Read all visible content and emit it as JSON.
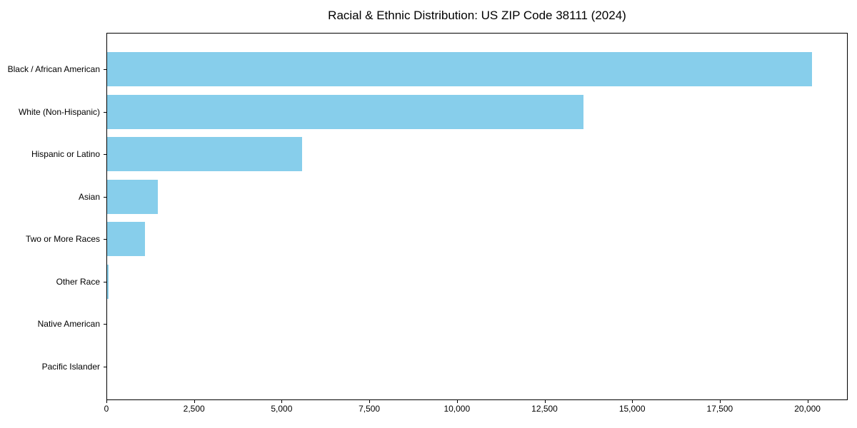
{
  "chart_data": {
    "type": "bar",
    "orientation": "horizontal",
    "title": "Racial & Ethnic Distribution: US ZIP Code 38111 (2024)",
    "categories": [
      "Black / African American",
      "White (Non-Hispanic)",
      "Hispanic or Latino",
      "Asian",
      "Two or More Races",
      "Other Race",
      "Native American",
      "Pacific Islander"
    ],
    "values": [
      20140,
      13620,
      5590,
      1470,
      1100,
      50,
      15,
      10
    ],
    "xlabel": "",
    "ylabel": "",
    "xlim": [
      0,
      21150
    ],
    "x_ticks": [
      0,
      2500,
      5000,
      7500,
      10000,
      12500,
      15000,
      17500,
      20000
    ],
    "x_tick_labels": [
      "0",
      "2,500",
      "5,000",
      "7,500",
      "10,000",
      "12,500",
      "15,000",
      "17,500",
      "20,000"
    ],
    "bar_color": "#87CEEB",
    "axis_color": "#000000",
    "grid": false,
    "legend": "none"
  }
}
